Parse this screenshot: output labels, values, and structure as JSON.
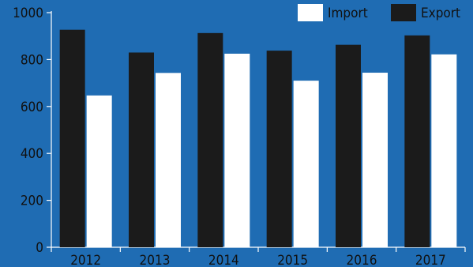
{
  "chart_data": {
    "type": "bar",
    "title": "",
    "xlabel": "",
    "ylabel": "",
    "categories": [
      "2012",
      "2013",
      "2014",
      "2015",
      "2016",
      "2017"
    ],
    "series": [
      {
        "name": "Export",
        "values": [
          927,
          830,
          913,
          838,
          863,
          903
        ],
        "color": "#1b1b1b"
      },
      {
        "name": "Import",
        "values": [
          647,
          743,
          825,
          710,
          744,
          822
        ],
        "color": "#ffffff"
      }
    ],
    "ylim": [
      0,
      1000
    ],
    "yticks": [
      0,
      200,
      400,
      600,
      800,
      1000
    ],
    "grid": false,
    "legend_position": "top-right",
    "legend_order": [
      "Import",
      "Export"
    ],
    "background_color": "#1f6cb3",
    "axis_color": "#ffffff"
  }
}
